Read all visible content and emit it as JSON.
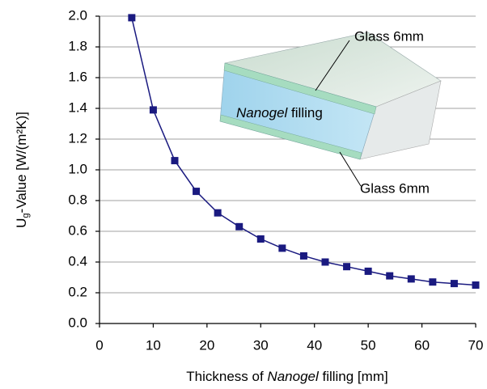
{
  "chart_data": {
    "type": "line",
    "x_label": {
      "pre": "Thickness of ",
      "italic": "Nanogel",
      "post": " filling [mm]"
    },
    "y_label": {
      "main": "U",
      "sub": "g",
      "rest": "-Value [W/(m²K)]"
    },
    "annotations": {
      "glass_top": "Glass 6mm",
      "filling_italic": "Nanogel",
      "filling_rest": " filling",
      "glass_bottom": "Glass 6mm"
    },
    "xlim": [
      0,
      70
    ],
    "ylim": [
      0,
      2
    ],
    "xticks": [
      0,
      10,
      20,
      30,
      40,
      50,
      60,
      70
    ],
    "yticks": [
      {
        "value": 0,
        "label": "0.0"
      },
      0.2,
      0.4,
      0.6,
      0.8,
      {
        "value": 1,
        "label": "1.0"
      },
      1.2,
      1.4,
      1.6,
      1.8,
      {
        "value": 2,
        "label": "2.0"
      }
    ],
    "grid": true,
    "series": [
      {
        "color": "#1a1a80",
        "x": [
          6,
          10,
          14,
          18,
          22,
          26,
          30,
          34,
          38,
          42,
          46,
          50,
          54,
          58,
          62,
          66,
          70
        ],
        "values": [
          1.99,
          1.39,
          1.06,
          0.86,
          0.72,
          0.63,
          0.55,
          0.49,
          0.44,
          0.4,
          0.37,
          0.34,
          0.31,
          0.29,
          0.27,
          0.26,
          0.25
        ]
      }
    ]
  }
}
